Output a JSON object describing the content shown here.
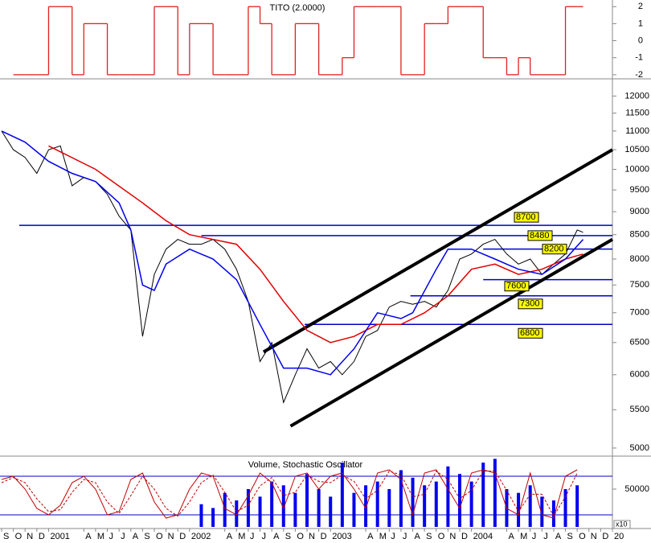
{
  "chart_data": [
    {
      "type": "step",
      "title": "TITO (2.0000)",
      "color": "#e02020",
      "x": [
        1,
        2,
        3,
        4,
        5,
        6,
        7,
        8,
        9,
        10,
        11,
        12,
        13,
        14,
        15,
        16,
        17,
        18,
        19,
        20,
        21,
        22,
        23,
        24,
        25,
        26,
        27,
        28,
        29,
        30,
        31,
        32,
        33,
        34,
        35,
        36,
        37,
        38,
        39,
        40,
        41,
        42,
        43,
        44,
        45,
        46,
        47,
        48,
        49
      ],
      "values": [
        -2,
        -2,
        -2,
        2,
        2,
        -2,
        1,
        1,
        -2,
        -2,
        -2,
        -2,
        2,
        2,
        -2,
        1,
        1,
        -2,
        -2,
        -2,
        2,
        1,
        -2,
        -2,
        1,
        1,
        -2,
        -2,
        -1,
        2,
        2,
        2,
        2,
        -2,
        -2,
        1,
        1,
        2,
        2,
        2,
        -1,
        -1,
        -2,
        -1,
        -2,
        -2,
        -2,
        2,
        2
      ],
      "xlim": [
        0,
        52
      ],
      "ylim": [
        -2.1,
        2.2
      ],
      "yticks": [
        2,
        1,
        0,
        -1,
        -2
      ]
    },
    {
      "type": "line",
      "log_scale": true,
      "xlim": [
        0,
        52
      ],
      "ylim": [
        4920,
        12350
      ],
      "yticks": [
        5000,
        5500,
        6000,
        6500,
        7000,
        7500,
        8000,
        8500,
        9000,
        9500,
        10000,
        10500,
        11000,
        11500,
        12000
      ],
      "series": [
        {
          "color": "#000000",
          "x": [
            0,
            1,
            2,
            3,
            4,
            5,
            6,
            7,
            8,
            9,
            10,
            11,
            12,
            13,
            14,
            15,
            16,
            17,
            18,
            19,
            20,
            21,
            22,
            23,
            24,
            25,
            26,
            27,
            28,
            29,
            30,
            31,
            32,
            33,
            34,
            35,
            36,
            37,
            38,
            39,
            40,
            41,
            42,
            43,
            44,
            45,
            46,
            47,
            48,
            49,
            49.5
          ],
          "values": [
            11000,
            10500,
            10300,
            9900,
            10500,
            10600,
            9600,
            9800,
            9700,
            9400,
            8900,
            8600,
            6600,
            7700,
            8200,
            8400,
            8300,
            8300,
            8400,
            8200,
            7800,
            7200,
            6200,
            6500,
            5600,
            6000,
            6400,
            6100,
            6200,
            6000,
            6200,
            6600,
            6700,
            7100,
            7200,
            7150,
            7200,
            7100,
            7400,
            8000,
            8100,
            8300,
            8400,
            8100,
            7900,
            8000,
            7700,
            7900,
            8100,
            8600,
            8550
          ]
        },
        {
          "color": "#e00000",
          "x": [
            4,
            8,
            12,
            14,
            16,
            20,
            22,
            24,
            26,
            28,
            30,
            32,
            34,
            36,
            38,
            40,
            42,
            44,
            46,
            48,
            49.5
          ],
          "values": [
            10600,
            10000,
            9200,
            8800,
            8500,
            8300,
            7800,
            7200,
            6700,
            6500,
            6600,
            6800,
            6800,
            7000,
            7300,
            7800,
            7900,
            7700,
            7800,
            8000,
            8100
          ]
        },
        {
          "color": "#0000ee",
          "x": [
            0,
            2,
            4,
            6,
            8,
            10,
            11,
            12,
            13,
            14,
            16,
            18,
            20,
            22,
            24,
            26,
            28,
            30,
            32,
            34,
            35,
            37,
            38,
            40,
            42,
            44,
            46,
            48,
            49.5
          ],
          "values": [
            11000,
            10700,
            10200,
            9900,
            9700,
            9200,
            8600,
            7500,
            7400,
            7900,
            8200,
            8000,
            7600,
            6800,
            6100,
            6100,
            6000,
            6400,
            7000,
            6900,
            7000,
            7800,
            8200,
            8200,
            8000,
            7800,
            7700,
            8000,
            8400
          ]
        }
      ],
      "trendlines": [
        {
          "x": [
            22.3,
            52
          ],
          "values": [
            6350,
            10500
          ]
        },
        {
          "x": [
            24.6,
            52
          ],
          "values": [
            5280,
            8400
          ]
        }
      ],
      "levels": [
        {
          "value": 8700,
          "x0": 1.5
        },
        {
          "value": 8480,
          "x0": 17
        },
        {
          "value": 8200,
          "x0": 41
        },
        {
          "value": 7600,
          "x0": 41
        },
        {
          "value": 7300,
          "x0": 34.8
        },
        {
          "value": 6800,
          "x0": 25.8
        }
      ]
    },
    {
      "type": "bar",
      "title": "Volume, Stochastic Oscillator",
      "unit_label": "x10",
      "xlim": [
        0,
        52
      ],
      "ylim": [
        0,
        90400
      ],
      "yticks": [
        50000
      ],
      "volume": {
        "color": "#0000ee",
        "x": [
          17,
          18,
          19,
          20,
          21,
          22,
          23,
          24,
          25,
          26,
          27,
          28,
          29,
          30,
          31,
          32,
          33,
          34,
          35,
          36,
          37,
          38,
          39,
          40,
          41,
          42,
          43,
          44,
          45,
          46,
          47,
          48,
          49
        ],
        "values": [
          30000,
          25000,
          45000,
          35000,
          50000,
          40000,
          60000,
          55000,
          45000,
          70000,
          50000,
          40000,
          85000,
          45000,
          55000,
          60000,
          50000,
          75000,
          65000,
          55000,
          60000,
          80000,
          70000,
          60000,
          85000,
          90000,
          50000,
          45000,
          55000,
          40000,
          35000,
          50000,
          55000
        ]
      },
      "stochastic": {
        "lim": [
          0,
          100
        ],
        "levels": [
          80,
          20
        ],
        "x": [
          0,
          1,
          2,
          3,
          4,
          5,
          6,
          7,
          8,
          9,
          10,
          11,
          12,
          13,
          14,
          15,
          16,
          17,
          18,
          19,
          20,
          21,
          22,
          23,
          24,
          25,
          26,
          27,
          28,
          29,
          30,
          31,
          32,
          33,
          34,
          35,
          36,
          37,
          38,
          39,
          40,
          41,
          42,
          43,
          44,
          45,
          46,
          47,
          48,
          49
        ],
        "series": [
          {
            "color": "#c00000",
            "values": [
              75,
              80,
              60,
              30,
              20,
              35,
              70,
              80,
              60,
              20,
              25,
              75,
              85,
              40,
              15,
              20,
              60,
              85,
              80,
              30,
              20,
              50,
              85,
              70,
              30,
              80,
              85,
              60,
              80,
              85,
              60,
              30,
              85,
              90,
              75,
              20,
              85,
              90,
              60,
              30,
              85,
              90,
              85,
              30,
              20,
              85,
              20,
              15,
              80,
              90
            ]
          },
          {
            "color": "#c00000",
            "dashed": true,
            "values": [
              70,
              78,
              70,
              45,
              25,
              28,
              55,
              75,
              70,
              40,
              22,
              50,
              80,
              60,
              30,
              18,
              40,
              70,
              82,
              55,
              25,
              35,
              65,
              78,
              50,
              55,
              82,
              72,
              70,
              82,
              72,
              45,
              58,
              88,
              82,
              48,
              52,
              88,
              75,
              45,
              58,
              88,
              88,
              58,
              25,
              52,
              52,
              18,
              48,
              85
            ]
          }
        ]
      },
      "xticks": [
        {
          "value": 0,
          "label": "S"
        },
        {
          "value": 1,
          "label": "O"
        },
        {
          "value": 2,
          "label": "N"
        },
        {
          "value": 3,
          "label": "D"
        },
        {
          "value": 4,
          "label": "2001"
        },
        {
          "value": 7,
          "label": "A"
        },
        {
          "value": 8,
          "label": "M"
        },
        {
          "value": 9,
          "label": "J"
        },
        {
          "value": 10,
          "label": "J"
        },
        {
          "value": 11,
          "label": "A"
        },
        {
          "value": 12,
          "label": "S"
        },
        {
          "value": 13,
          "label": "O"
        },
        {
          "value": 14,
          "label": "N"
        },
        {
          "value": 15,
          "label": "D"
        },
        {
          "value": 16,
          "label": "2002"
        },
        {
          "value": 19,
          "label": "A"
        },
        {
          "value": 20,
          "label": "M"
        },
        {
          "value": 21,
          "label": "J"
        },
        {
          "value": 22,
          "label": "J"
        },
        {
          "value": 23,
          "label": "A"
        },
        {
          "value": 24,
          "label": "S"
        },
        {
          "value": 25,
          "label": "O"
        },
        {
          "value": 26,
          "label": "N"
        },
        {
          "value": 27,
          "label": "D"
        },
        {
          "value": 28,
          "label": "2003"
        },
        {
          "value": 31,
          "label": "A"
        },
        {
          "value": 32,
          "label": "M"
        },
        {
          "value": 33,
          "label": "J"
        },
        {
          "value": 34,
          "label": "J"
        },
        {
          "value": 35,
          "label": "A"
        },
        {
          "value": 36,
          "label": "S"
        },
        {
          "value": 37,
          "label": "O"
        },
        {
          "value": 38,
          "label": "N"
        },
        {
          "value": 39,
          "label": "D"
        },
        {
          "value": 40,
          "label": "2004"
        },
        {
          "value": 43,
          "label": "A"
        },
        {
          "value": 44,
          "label": "M"
        },
        {
          "value": 45,
          "label": "J"
        },
        {
          "value": 46,
          "label": "J"
        },
        {
          "value": 47,
          "label": "A"
        },
        {
          "value": 48,
          "label": "S"
        },
        {
          "value": 49,
          "label": "O"
        },
        {
          "value": 50,
          "label": "N"
        },
        {
          "value": 51,
          "label": "D"
        },
        {
          "value": 52,
          "label": "20"
        }
      ]
    }
  ]
}
